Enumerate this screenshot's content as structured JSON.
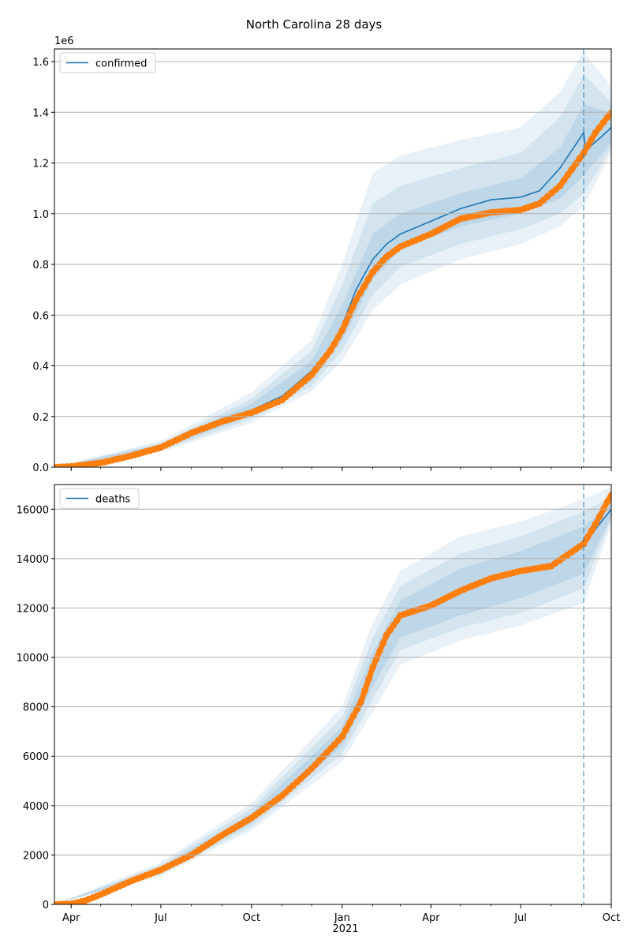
{
  "figure": {
    "title": "North Carolina 28 days"
  },
  "colors": {
    "model": "#1f77b4",
    "observed": "#ff7f0e",
    "band": "#1f77b4",
    "grid": "#b0b0b0",
    "forecast_line": "#1f77b4"
  },
  "x_axis": {
    "start": "2020-03-15",
    "end": "2021-10-01",
    "ticks": [
      {
        "date": "2020-04-01",
        "label": "Apr"
      },
      {
        "date": "2020-07-01",
        "label": "Jul"
      },
      {
        "date": "2020-10-01",
        "label": "Oct"
      },
      {
        "date": "2021-01-01",
        "label": "Jan"
      },
      {
        "date": "2021-04-01",
        "label": "Apr"
      },
      {
        "date": "2021-07-01",
        "label": "Jul"
      },
      {
        "date": "2021-10-01",
        "label": "Oct"
      }
    ],
    "year_label": "2021",
    "forecast_start": "2021-09-03"
  },
  "chart_data": [
    {
      "type": "line",
      "legend": "confirmed",
      "legend_position": "upper-left",
      "grid": "y",
      "offset_label": "1e6",
      "ylim": [
        0,
        1.65
      ],
      "yticks": [
        {
          "v": 0.0,
          "label": "0.0"
        },
        {
          "v": 0.2,
          "label": "0.2"
        },
        {
          "v": 0.4,
          "label": "0.4"
        },
        {
          "v": 0.6,
          "label": "0.6"
        },
        {
          "v": 0.8,
          "label": "0.8"
        },
        {
          "v": 1.0,
          "label": "1.0"
        },
        {
          "v": 1.2,
          "label": "1.2"
        },
        {
          "v": 1.4,
          "label": "1.4"
        },
        {
          "v": 1.6,
          "label": "1.6"
        }
      ],
      "model": [
        [
          "2020-03-15",
          0.0
        ],
        [
          "2020-04-01",
          0.003
        ],
        [
          "2020-05-01",
          0.018
        ],
        [
          "2020-06-01",
          0.045
        ],
        [
          "2020-07-01",
          0.08
        ],
        [
          "2020-08-01",
          0.14
        ],
        [
          "2020-09-01",
          0.19
        ],
        [
          "2020-10-01",
          0.225
        ],
        [
          "2020-11-01",
          0.28
        ],
        [
          "2020-12-01",
          0.38
        ],
        [
          "2020-12-20",
          0.47
        ],
        [
          "2021-01-01",
          0.56
        ],
        [
          "2021-01-15",
          0.7
        ],
        [
          "2021-02-01",
          0.82
        ],
        [
          "2021-02-15",
          0.88
        ],
        [
          "2021-03-01",
          0.92
        ],
        [
          "2021-04-01",
          0.97
        ],
        [
          "2021-05-01",
          1.02
        ],
        [
          "2021-06-01",
          1.055
        ],
        [
          "2021-07-01",
          1.065
        ],
        [
          "2021-07-20",
          1.09
        ],
        [
          "2021-08-10",
          1.18
        ],
        [
          "2021-09-03",
          1.32
        ],
        [
          "2021-09-05",
          1.25
        ],
        [
          "2021-09-20",
          1.3
        ],
        [
          "2021-10-01",
          1.34
        ]
      ],
      "band_inner_lower": [
        [
          "2020-03-15",
          0.0
        ],
        [
          "2020-07-01",
          0.072
        ],
        [
          "2020-10-01",
          0.205
        ],
        [
          "2020-12-01",
          0.34
        ],
        [
          "2021-01-01",
          0.5
        ],
        [
          "2021-02-01",
          0.74
        ],
        [
          "2021-03-01",
          0.86
        ],
        [
          "2021-05-01",
          0.95
        ],
        [
          "2021-07-01",
          1.0
        ],
        [
          "2021-08-10",
          1.06
        ],
        [
          "2021-09-03",
          1.15
        ],
        [
          "2021-10-01",
          1.28
        ]
      ],
      "band_inner_upper": [
        [
          "2020-03-15",
          0.0
        ],
        [
          "2020-07-01",
          0.09
        ],
        [
          "2020-10-01",
          0.25
        ],
        [
          "2020-12-01",
          0.42
        ],
        [
          "2021-01-01",
          0.64
        ],
        [
          "2021-02-01",
          0.92
        ],
        [
          "2021-03-01",
          1.0
        ],
        [
          "2021-05-01",
          1.08
        ],
        [
          "2021-07-01",
          1.14
        ],
        [
          "2021-08-10",
          1.26
        ],
        [
          "2021-09-03",
          1.43
        ],
        [
          "2021-10-01",
          1.4
        ]
      ],
      "band_mid_lower": [
        [
          "2020-03-15",
          0.0
        ],
        [
          "2020-07-01",
          0.066
        ],
        [
          "2020-10-01",
          0.19
        ],
        [
          "2020-12-01",
          0.32
        ],
        [
          "2021-01-01",
          0.46
        ],
        [
          "2021-02-01",
          0.68
        ],
        [
          "2021-03-01",
          0.79
        ],
        [
          "2021-05-01",
          0.88
        ],
        [
          "2021-07-01",
          0.94
        ],
        [
          "2021-08-10",
          1.0
        ],
        [
          "2021-09-03",
          1.08
        ],
        [
          "2021-10-01",
          1.26
        ]
      ],
      "band_mid_upper": [
        [
          "2020-03-15",
          0.0
        ],
        [
          "2020-07-01",
          0.096
        ],
        [
          "2020-10-01",
          0.27
        ],
        [
          "2020-12-01",
          0.46
        ],
        [
          "2021-01-01",
          0.72
        ],
        [
          "2021-02-01",
          1.04
        ],
        [
          "2021-03-01",
          1.11
        ],
        [
          "2021-05-01",
          1.18
        ],
        [
          "2021-07-01",
          1.24
        ],
        [
          "2021-08-10",
          1.38
        ],
        [
          "2021-09-03",
          1.55
        ],
        [
          "2021-10-01",
          1.44
        ]
      ],
      "band_outer_lower": [
        [
          "2020-03-15",
          0.0
        ],
        [
          "2020-07-01",
          0.06
        ],
        [
          "2020-10-01",
          0.175
        ],
        [
          "2020-12-01",
          0.3
        ],
        [
          "2021-01-01",
          0.42
        ],
        [
          "2021-02-01",
          0.62
        ],
        [
          "2021-03-01",
          0.72
        ],
        [
          "2021-05-01",
          0.82
        ],
        [
          "2021-07-01",
          0.88
        ],
        [
          "2021-08-10",
          0.95
        ],
        [
          "2021-09-03",
          1.03
        ],
        [
          "2021-10-01",
          1.24
        ]
      ],
      "band_outer_upper": [
        [
          "2020-03-15",
          0.0
        ],
        [
          "2020-07-01",
          0.104
        ],
        [
          "2020-10-01",
          0.295
        ],
        [
          "2020-12-01",
          0.5
        ],
        [
          "2021-01-01",
          0.8
        ],
        [
          "2021-02-01",
          1.16
        ],
        [
          "2021-03-01",
          1.23
        ],
        [
          "2021-05-01",
          1.29
        ],
        [
          "2021-07-01",
          1.34
        ],
        [
          "2021-08-10",
          1.48
        ],
        [
          "2021-09-03",
          1.64
        ],
        [
          "2021-10-01",
          1.5
        ]
      ],
      "observed": [
        [
          "2020-03-15",
          0.0
        ],
        [
          "2020-04-01",
          0.003
        ],
        [
          "2020-05-01",
          0.017
        ],
        [
          "2020-06-01",
          0.045
        ],
        [
          "2020-07-01",
          0.078
        ],
        [
          "2020-08-01",
          0.135
        ],
        [
          "2020-09-01",
          0.18
        ],
        [
          "2020-10-01",
          0.215
        ],
        [
          "2020-11-01",
          0.265
        ],
        [
          "2020-12-01",
          0.365
        ],
        [
          "2020-12-20",
          0.46
        ],
        [
          "2021-01-01",
          0.54
        ],
        [
          "2021-01-15",
          0.66
        ],
        [
          "2021-02-01",
          0.77
        ],
        [
          "2021-02-15",
          0.83
        ],
        [
          "2021-03-01",
          0.87
        ],
        [
          "2021-04-01",
          0.92
        ],
        [
          "2021-05-01",
          0.98
        ],
        [
          "2021-06-01",
          1.005
        ],
        [
          "2021-07-01",
          1.015
        ],
        [
          "2021-07-20",
          1.04
        ],
        [
          "2021-08-10",
          1.11
        ],
        [
          "2021-09-03",
          1.24
        ],
        [
          "2021-09-15",
          1.32
        ],
        [
          "2021-10-01",
          1.4
        ]
      ]
    },
    {
      "type": "line",
      "legend": "deaths",
      "legend_position": "upper-left",
      "grid": "y",
      "ylim": [
        0,
        17000
      ],
      "yticks": [
        {
          "v": 0,
          "label": "0"
        },
        {
          "v": 2000,
          "label": "2000"
        },
        {
          "v": 4000,
          "label": "4000"
        },
        {
          "v": 6000,
          "label": "6000"
        },
        {
          "v": 8000,
          "label": "8000"
        },
        {
          "v": 10000,
          "label": "10000"
        },
        {
          "v": 12000,
          "label": "12000"
        },
        {
          "v": 14000,
          "label": "14000"
        },
        {
          "v": 16000,
          "label": "16000"
        }
      ],
      "model": [
        [
          "2020-03-15",
          0
        ],
        [
          "2020-04-01",
          20
        ],
        [
          "2020-04-15",
          150
        ],
        [
          "2020-05-01",
          400
        ],
        [
          "2020-06-01",
          950
        ],
        [
          "2020-07-01",
          1400
        ],
        [
          "2020-08-01",
          2000
        ],
        [
          "2020-09-01",
          2800
        ],
        [
          "2020-10-01",
          3500
        ],
        [
          "2020-11-01",
          4400
        ],
        [
          "2020-12-01",
          5500
        ],
        [
          "2021-01-01",
          6800
        ],
        [
          "2021-01-20",
          8200
        ],
        [
          "2021-02-01",
          9500
        ],
        [
          "2021-02-15",
          10800
        ],
        [
          "2021-03-01",
          11600
        ],
        [
          "2021-04-01",
          12100
        ],
        [
          "2021-05-01",
          12700
        ],
        [
          "2021-06-01",
          13200
        ],
        [
          "2021-07-01",
          13500
        ],
        [
          "2021-08-01",
          13700
        ],
        [
          "2021-09-03",
          14500
        ],
        [
          "2021-09-05",
          14700
        ],
        [
          "2021-10-01",
          16000
        ]
      ],
      "band_inner_lower": [
        [
          "2020-03-15",
          0
        ],
        [
          "2020-07-01",
          1300
        ],
        [
          "2020-10-01",
          3300
        ],
        [
          "2021-01-01",
          6400
        ],
        [
          "2021-02-01",
          8800
        ],
        [
          "2021-03-01",
          10800
        ],
        [
          "2021-05-01",
          11700
        ],
        [
          "2021-07-01",
          12400
        ],
        [
          "2021-09-03",
          13400
        ],
        [
          "2021-10-01",
          15700
        ]
      ],
      "band_inner_upper": [
        [
          "2020-03-15",
          0
        ],
        [
          "2020-07-01",
          1500
        ],
        [
          "2020-10-01",
          3700
        ],
        [
          "2021-01-01",
          7200
        ],
        [
          "2021-02-01",
          10200
        ],
        [
          "2021-03-01",
          12300
        ],
        [
          "2021-05-01",
          13600
        ],
        [
          "2021-07-01",
          14300
        ],
        [
          "2021-09-03",
          15300
        ],
        [
          "2021-10-01",
          16200
        ]
      ],
      "band_mid_lower": [
        [
          "2020-03-15",
          0
        ],
        [
          "2020-07-01",
          1220
        ],
        [
          "2020-10-01",
          3150
        ],
        [
          "2021-01-01",
          6100
        ],
        [
          "2021-02-01",
          8300
        ],
        [
          "2021-03-01",
          10300
        ],
        [
          "2021-05-01",
          11200
        ],
        [
          "2021-07-01",
          11800
        ],
        [
          "2021-09-03",
          12800
        ],
        [
          "2021-10-01",
          15600
        ]
      ],
      "band_mid_upper": [
        [
          "2020-03-15",
          0
        ],
        [
          "2020-07-01",
          1600
        ],
        [
          "2020-10-01",
          3900
        ],
        [
          "2021-01-01",
          7600
        ],
        [
          "2021-02-01",
          10800
        ],
        [
          "2021-03-01",
          12900
        ],
        [
          "2021-05-01",
          14200
        ],
        [
          "2021-07-01",
          14900
        ],
        [
          "2021-09-03",
          15900
        ],
        [
          "2021-10-01",
          16500
        ]
      ],
      "band_outer_lower": [
        [
          "2020-03-15",
          0
        ],
        [
          "2020-07-01",
          1150
        ],
        [
          "2020-10-01",
          3000
        ],
        [
          "2021-01-01",
          5800
        ],
        [
          "2021-02-01",
          7800
        ],
        [
          "2021-03-01",
          9700
        ],
        [
          "2021-05-01",
          10700
        ],
        [
          "2021-07-01",
          11300
        ],
        [
          "2021-09-03",
          12200
        ],
        [
          "2021-10-01",
          15400
        ]
      ],
      "band_outer_upper": [
        [
          "2020-03-15",
          0
        ],
        [
          "2020-07-01",
          1700
        ],
        [
          "2020-10-01",
          4100
        ],
        [
          "2021-01-01",
          8000
        ],
        [
          "2021-02-01",
          11400
        ],
        [
          "2021-03-01",
          13500
        ],
        [
          "2021-05-01",
          14900
        ],
        [
          "2021-07-01",
          15500
        ],
        [
          "2021-09-03",
          16400
        ],
        [
          "2021-10-01",
          16900
        ]
      ],
      "observed": [
        [
          "2020-03-15",
          0
        ],
        [
          "2020-04-01",
          20
        ],
        [
          "2020-04-15",
          150
        ],
        [
          "2020-05-01",
          400
        ],
        [
          "2020-06-01",
          950
        ],
        [
          "2020-07-01",
          1400
        ],
        [
          "2020-08-01",
          2000
        ],
        [
          "2020-09-01",
          2800
        ],
        [
          "2020-10-01",
          3500
        ],
        [
          "2020-11-01",
          4400
        ],
        [
          "2020-12-01",
          5500
        ],
        [
          "2021-01-01",
          6800
        ],
        [
          "2021-01-20",
          8200
        ],
        [
          "2021-02-01",
          9600
        ],
        [
          "2021-02-15",
          10900
        ],
        [
          "2021-03-01",
          11700
        ],
        [
          "2021-04-01",
          12100
        ],
        [
          "2021-05-01",
          12700
        ],
        [
          "2021-06-01",
          13200
        ],
        [
          "2021-07-01",
          13500
        ],
        [
          "2021-08-01",
          13700
        ],
        [
          "2021-09-03",
          14600
        ],
        [
          "2021-09-15",
          15400
        ],
        [
          "2021-10-01",
          16600
        ]
      ]
    }
  ]
}
